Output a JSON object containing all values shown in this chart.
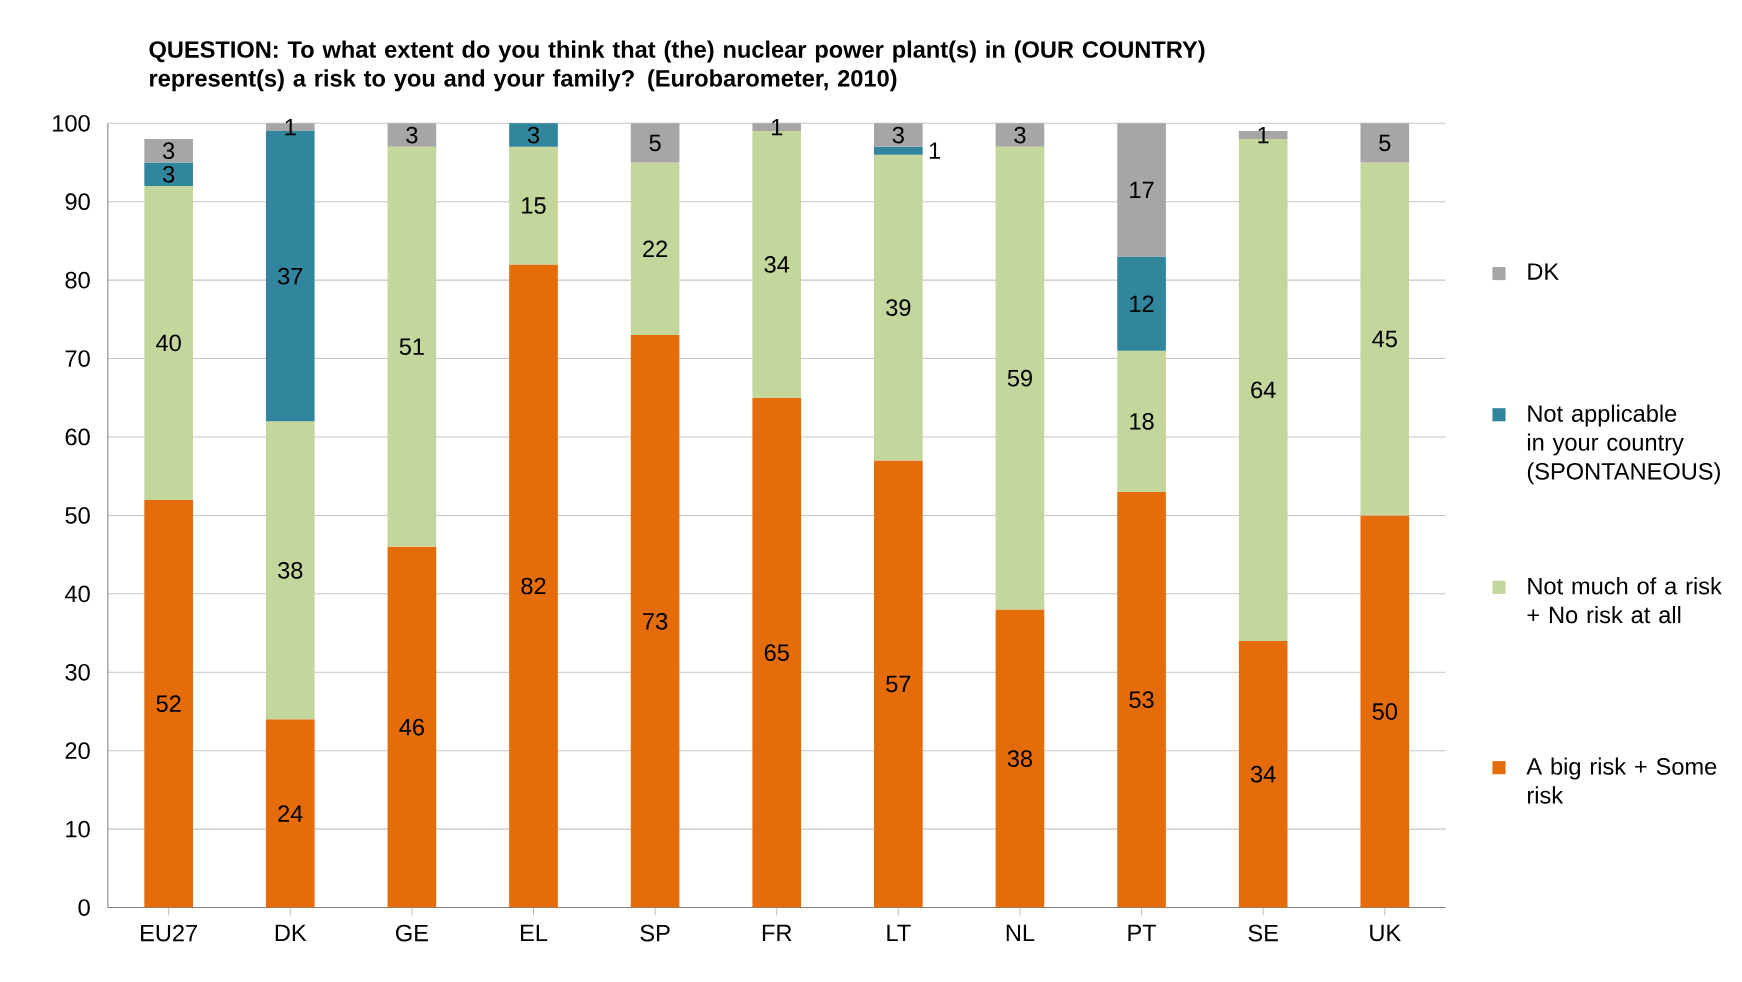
{
  "chart_data": {
    "type": "bar",
    "stacked": true,
    "title": "QUESTION: To what extent do you think that (the) nuclear power plant(s) in (OUR COUNTRY) represent(s) a risk to you and your family? (Eurobarometer, 2010)",
    "categories": [
      "EU27",
      "DK",
      "GE",
      "EL",
      "SP",
      "FR",
      "LT",
      "NL",
      "PT",
      "SE",
      "UK"
    ],
    "series": [
      {
        "name": "A big risk + Some risk",
        "color": "#e46c0a",
        "values": [
          52,
          24,
          46,
          82,
          73,
          65,
          57,
          38,
          53,
          34,
          50
        ]
      },
      {
        "name": "Not much of a risk + No risk at all",
        "color": "#c3d69b",
        "values": [
          40,
          38,
          51,
          15,
          22,
          34,
          39,
          59,
          18,
          64,
          45
        ]
      },
      {
        "name": "Not applicable in your country (SPONTANEOUS)",
        "color": "#31859c",
        "values": [
          3,
          37,
          null,
          3,
          null,
          null,
          1,
          null,
          12,
          null,
          null
        ]
      },
      {
        "name": "DK",
        "color": "#a6a6a6",
        "values": [
          3,
          1,
          3,
          null,
          5,
          1,
          3,
          3,
          17,
          1,
          5
        ]
      }
    ],
    "ylim": [
      0,
      100
    ],
    "yticks": [
      0,
      10,
      20,
      30,
      40,
      50,
      60,
      70,
      80,
      90,
      100
    ],
    "grid": "y",
    "legend": "right",
    "data_labels": true
  }
}
